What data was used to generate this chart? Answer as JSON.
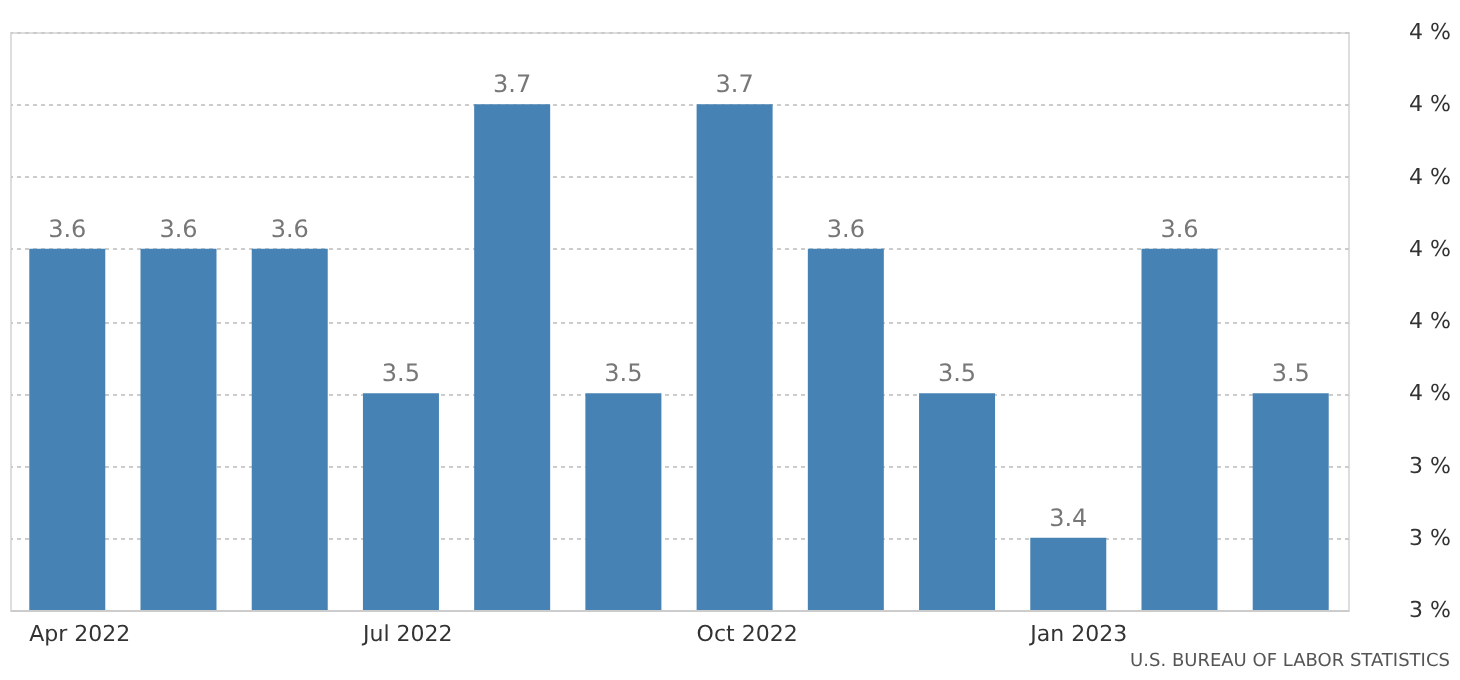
{
  "chart_data": {
    "type": "bar",
    "categories": [
      "Apr 2022",
      null,
      null,
      "Jul 2022",
      null,
      null,
      "Oct 2022",
      null,
      null,
      "Jan 2023",
      null,
      null
    ],
    "values": [
      3.6,
      3.6,
      3.6,
      3.5,
      3.7,
      3.5,
      3.7,
      3.6,
      3.5,
      3.4,
      3.6,
      3.5
    ],
    "color": "#4682b4",
    "data_labels": true,
    "ylim": [
      3.35,
      3.75
    ],
    "yticks": [
      {
        "value": 3.35,
        "label": "3 %"
      },
      {
        "value": 3.4,
        "label": "3 %"
      },
      {
        "value": 3.45,
        "label": "3 %"
      },
      {
        "value": 3.5,
        "label": "4 %"
      },
      {
        "value": 3.55,
        "label": "4 %"
      },
      {
        "value": 3.6,
        "label": "4 %"
      },
      {
        "value": 3.65,
        "label": "4 %"
      },
      {
        "value": 3.7,
        "label": "4 %"
      },
      {
        "value": 3.75,
        "label": "4 %"
      }
    ],
    "grid": "y",
    "annotations": [
      "U.S. BUREAU OF LABOR STATISTICS"
    ]
  }
}
